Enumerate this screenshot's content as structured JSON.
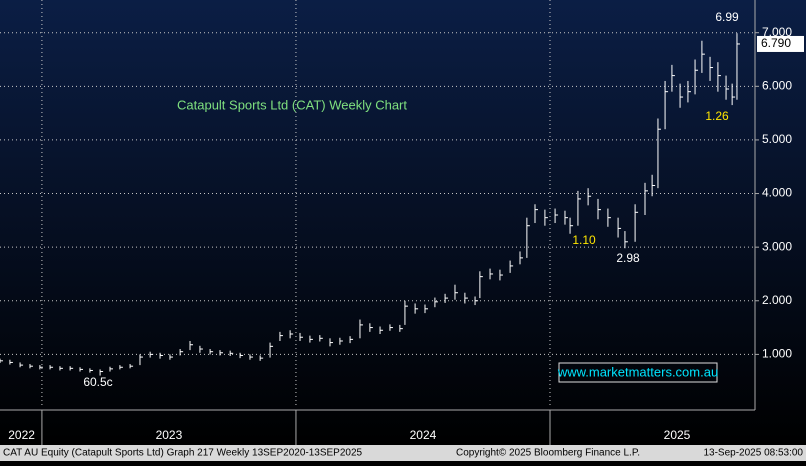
{
  "chart_data": {
    "type": "hlc",
    "title": "Catapult Sports Ltd (CAT) Weekly Chart",
    "color": "#ffffff",
    "x": [
      2022.835,
      2022.874,
      2022.914,
      2022.953,
      2022.992,
      2023.032,
      2023.071,
      2023.111,
      2023.15,
      2023.189,
      2023.229,
      2023.268,
      2023.307,
      2023.347,
      2023.386,
      2023.426,
      2023.465,
      2023.504,
      2023.544,
      2023.583,
      2023.622,
      2023.662,
      2023.701,
      2023.741,
      2023.78,
      2023.819,
      2023.859,
      2023.898,
      2023.937,
      2023.977,
      2024.016,
      2024.055,
      2024.094,
      2024.134,
      2024.173,
      2024.213,
      2024.252,
      2024.291,
      2024.331,
      2024.37,
      2024.409,
      2024.429,
      2024.469,
      2024.508,
      2024.547,
      2024.587,
      2024.626,
      2024.665,
      2024.705,
      2024.724,
      2024.764,
      2024.803,
      2024.843,
      2024.882,
      2024.909,
      2024.941,
      2024.98,
      2025.02,
      2025.059,
      2025.079,
      2025.11,
      2025.15,
      2025.189,
      2025.228,
      2025.268,
      2025.295,
      2025.335,
      2025.374,
      2025.402,
      2025.425,
      2025.453,
      2025.48,
      2025.512,
      2025.543,
      2025.571,
      2025.598,
      2025.63,
      2025.661,
      2025.693,
      2025.717,
      2025.736
    ],
    "high": [
      0.92,
      0.9,
      0.85,
      0.82,
      0.8,
      0.8,
      0.78,
      0.78,
      0.76,
      0.74,
      0.72,
      0.77,
      0.8,
      0.82,
      1.0,
      1.05,
      1.03,
      1.0,
      1.1,
      1.25,
      1.16,
      1.1,
      1.08,
      1.07,
      1.03,
      1.0,
      0.98,
      1.22,
      1.42,
      1.45,
      1.4,
      1.35,
      1.36,
      1.3,
      1.31,
      1.34,
      1.65,
      1.58,
      1.52,
      1.56,
      1.55,
      2.0,
      1.95,
      1.93,
      2.06,
      2.13,
      2.3,
      2.15,
      2.08,
      2.55,
      2.6,
      2.58,
      2.75,
      2.92,
      3.55,
      3.8,
      3.7,
      3.72,
      3.68,
      3.55,
      4.05,
      4.1,
      3.9,
      3.72,
      3.55,
      3.3,
      3.8,
      4.2,
      4.35,
      5.4,
      6.1,
      6.4,
      6.05,
      6.1,
      6.5,
      6.85,
      6.55,
      6.45,
      6.2,
      6.05,
      6.99
    ],
    "low": [
      0.84,
      0.81,
      0.76,
      0.74,
      0.72,
      0.72,
      0.7,
      0.7,
      0.68,
      0.66,
      0.605,
      0.68,
      0.72,
      0.74,
      0.8,
      0.94,
      0.92,
      0.9,
      0.98,
      1.08,
      1.03,
      1.0,
      0.98,
      0.97,
      0.93,
      0.9,
      0.88,
      0.94,
      1.25,
      1.3,
      1.25,
      1.22,
      1.24,
      1.15,
      1.18,
      1.21,
      1.3,
      1.42,
      1.38,
      1.44,
      1.42,
      1.55,
      1.76,
      1.77,
      1.88,
      1.96,
      2.02,
      1.95,
      1.92,
      2.05,
      2.4,
      2.38,
      2.52,
      2.68,
      2.8,
      3.45,
      3.4,
      3.45,
      3.42,
      3.25,
      3.4,
      3.78,
      3.52,
      3.38,
      3.18,
      2.98,
      3.1,
      3.6,
      3.95,
      4.1,
      5.2,
      5.9,
      5.6,
      5.7,
      5.85,
      6.25,
      6.1,
      5.9,
      5.75,
      5.65,
      5.75
    ],
    "close": [
      0.88,
      0.85,
      0.8,
      0.78,
      0.76,
      0.76,
      0.74,
      0.74,
      0.72,
      0.7,
      0.68,
      0.73,
      0.76,
      0.78,
      0.95,
      1.0,
      0.98,
      0.95,
      1.05,
      1.18,
      1.1,
      1.05,
      1.03,
      1.02,
      0.98,
      0.95,
      0.93,
      1.15,
      1.35,
      1.38,
      1.32,
      1.28,
      1.3,
      1.22,
      1.25,
      1.28,
      1.55,
      1.5,
      1.45,
      1.5,
      1.48,
      1.9,
      1.85,
      1.85,
      1.98,
      2.05,
      2.15,
      2.05,
      2.0,
      2.45,
      2.5,
      2.48,
      2.65,
      2.8,
      3.4,
      3.7,
      3.55,
      3.6,
      3.55,
      3.4,
      3.9,
      3.95,
      3.7,
      3.55,
      3.35,
      3.1,
      3.65,
      4.05,
      4.15,
      5.2,
      5.9,
      6.2,
      5.8,
      5.9,
      6.3,
      6.6,
      6.35,
      6.2,
      5.95,
      5.8,
      6.79
    ],
    "last_label": "6.790",
    "xlim": [
      2022.835,
      2025.807
    ],
    "xticks": [
      2023,
      2024,
      2025
    ],
    "x_labels": [
      {
        "value": 2022.92,
        "label": "2022"
      },
      {
        "value": 2023.5,
        "label": "2023"
      },
      {
        "value": 2024.5,
        "label": "2024"
      },
      {
        "value": 2025.5,
        "label": "2025"
      }
    ],
    "ylim": [
      0,
      7.61
    ],
    "yticks": [
      {
        "value": 1,
        "label": "1.000"
      },
      {
        "value": 2,
        "label": "2.000"
      },
      {
        "value": 3,
        "label": "3.000"
      },
      {
        "value": 4,
        "label": "4.000"
      },
      {
        "value": 5,
        "label": "5.000"
      },
      {
        "value": 6,
        "label": "6.000"
      },
      {
        "value": 7,
        "label": "7.000"
      }
    ],
    "grid": true,
    "annotations": [
      "6.99",
      "1.26",
      "1.10",
      "2.98",
      "60.5c"
    ],
    "watermark": "www.marketmatters.com.au"
  },
  "footer": {
    "left": "CAT AU Equity (Catapult Sports Ltd) Graph 217  Weekly 13SEP2020-13SEP2025",
    "center": "Copyright© 2025 Bloomberg Finance L.P.",
    "right": "13-Sep-2025 08:53:00"
  }
}
